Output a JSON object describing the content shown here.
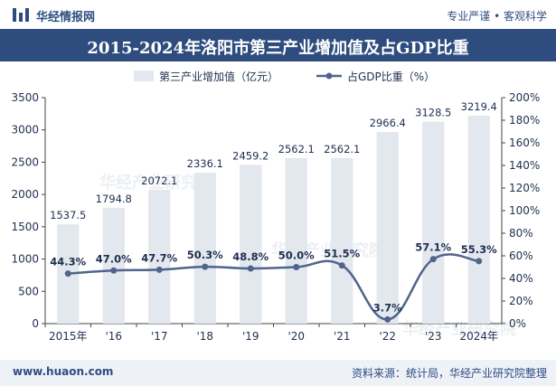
{
  "header": {
    "brand": "华经情报网",
    "slogan": "专业严谨 • 客观科学"
  },
  "title": "2015-2024年洛阳市第三产业增加值及占GDP比重",
  "footer": {
    "site": "www.huaon.com",
    "source": "资料来源：统计局，华经产业研究院整理"
  },
  "watermark": "华经产业研究院",
  "colors": {
    "bar": "#e3e7ee",
    "line": "#50648c",
    "title_bg": "#2e4d7e",
    "brand": "#2d4d82"
  },
  "chart_data": {
    "type": "bar+line",
    "categories": [
      "2015年",
      "'16",
      "'17",
      "'18",
      "'19",
      "'20",
      "'21",
      "'22",
      "'23",
      "2024年"
    ],
    "series": [
      {
        "name": "第三产业增加值（亿元）",
        "type": "bar",
        "axis": "left",
        "values": [
          1537.5,
          1794.8,
          2072.1,
          2336.1,
          2459.2,
          2562.1,
          2562.1,
          2966.4,
          3128.5,
          3219.4
        ],
        "labels": [
          "1537.5",
          "1794.8",
          "2072.1",
          "2336.1",
          "2459.2",
          "2562.1",
          "2562.1",
          "2966.4",
          "3128.5",
          "3219.4"
        ]
      },
      {
        "name": "占GDP比重（%）",
        "type": "line",
        "axis": "right",
        "values": [
          44.3,
          47.0,
          47.7,
          50.3,
          48.8,
          50.0,
          51.5,
          3.7,
          57.1,
          55.3
        ],
        "labels": [
          "44.3%",
          "47.0%",
          "47.7%",
          "50.3%",
          "48.8%",
          "50.0%",
          "51.5%",
          "3.7%",
          "57.1%",
          "55.3%"
        ]
      }
    ],
    "y_left": {
      "min": 0,
      "max": 3500,
      "ticks": [
        "0",
        "500",
        "1000",
        "1500",
        "2000",
        "2500",
        "3000",
        "3500"
      ]
    },
    "y_right": {
      "min": 0,
      "max": 200,
      "ticks": [
        "0%",
        "20%",
        "40%",
        "60%",
        "80%",
        "100%",
        "120%",
        "140%",
        "160%",
        "180%",
        "200%"
      ]
    },
    "legend_position": "top-center",
    "grid": false
  }
}
